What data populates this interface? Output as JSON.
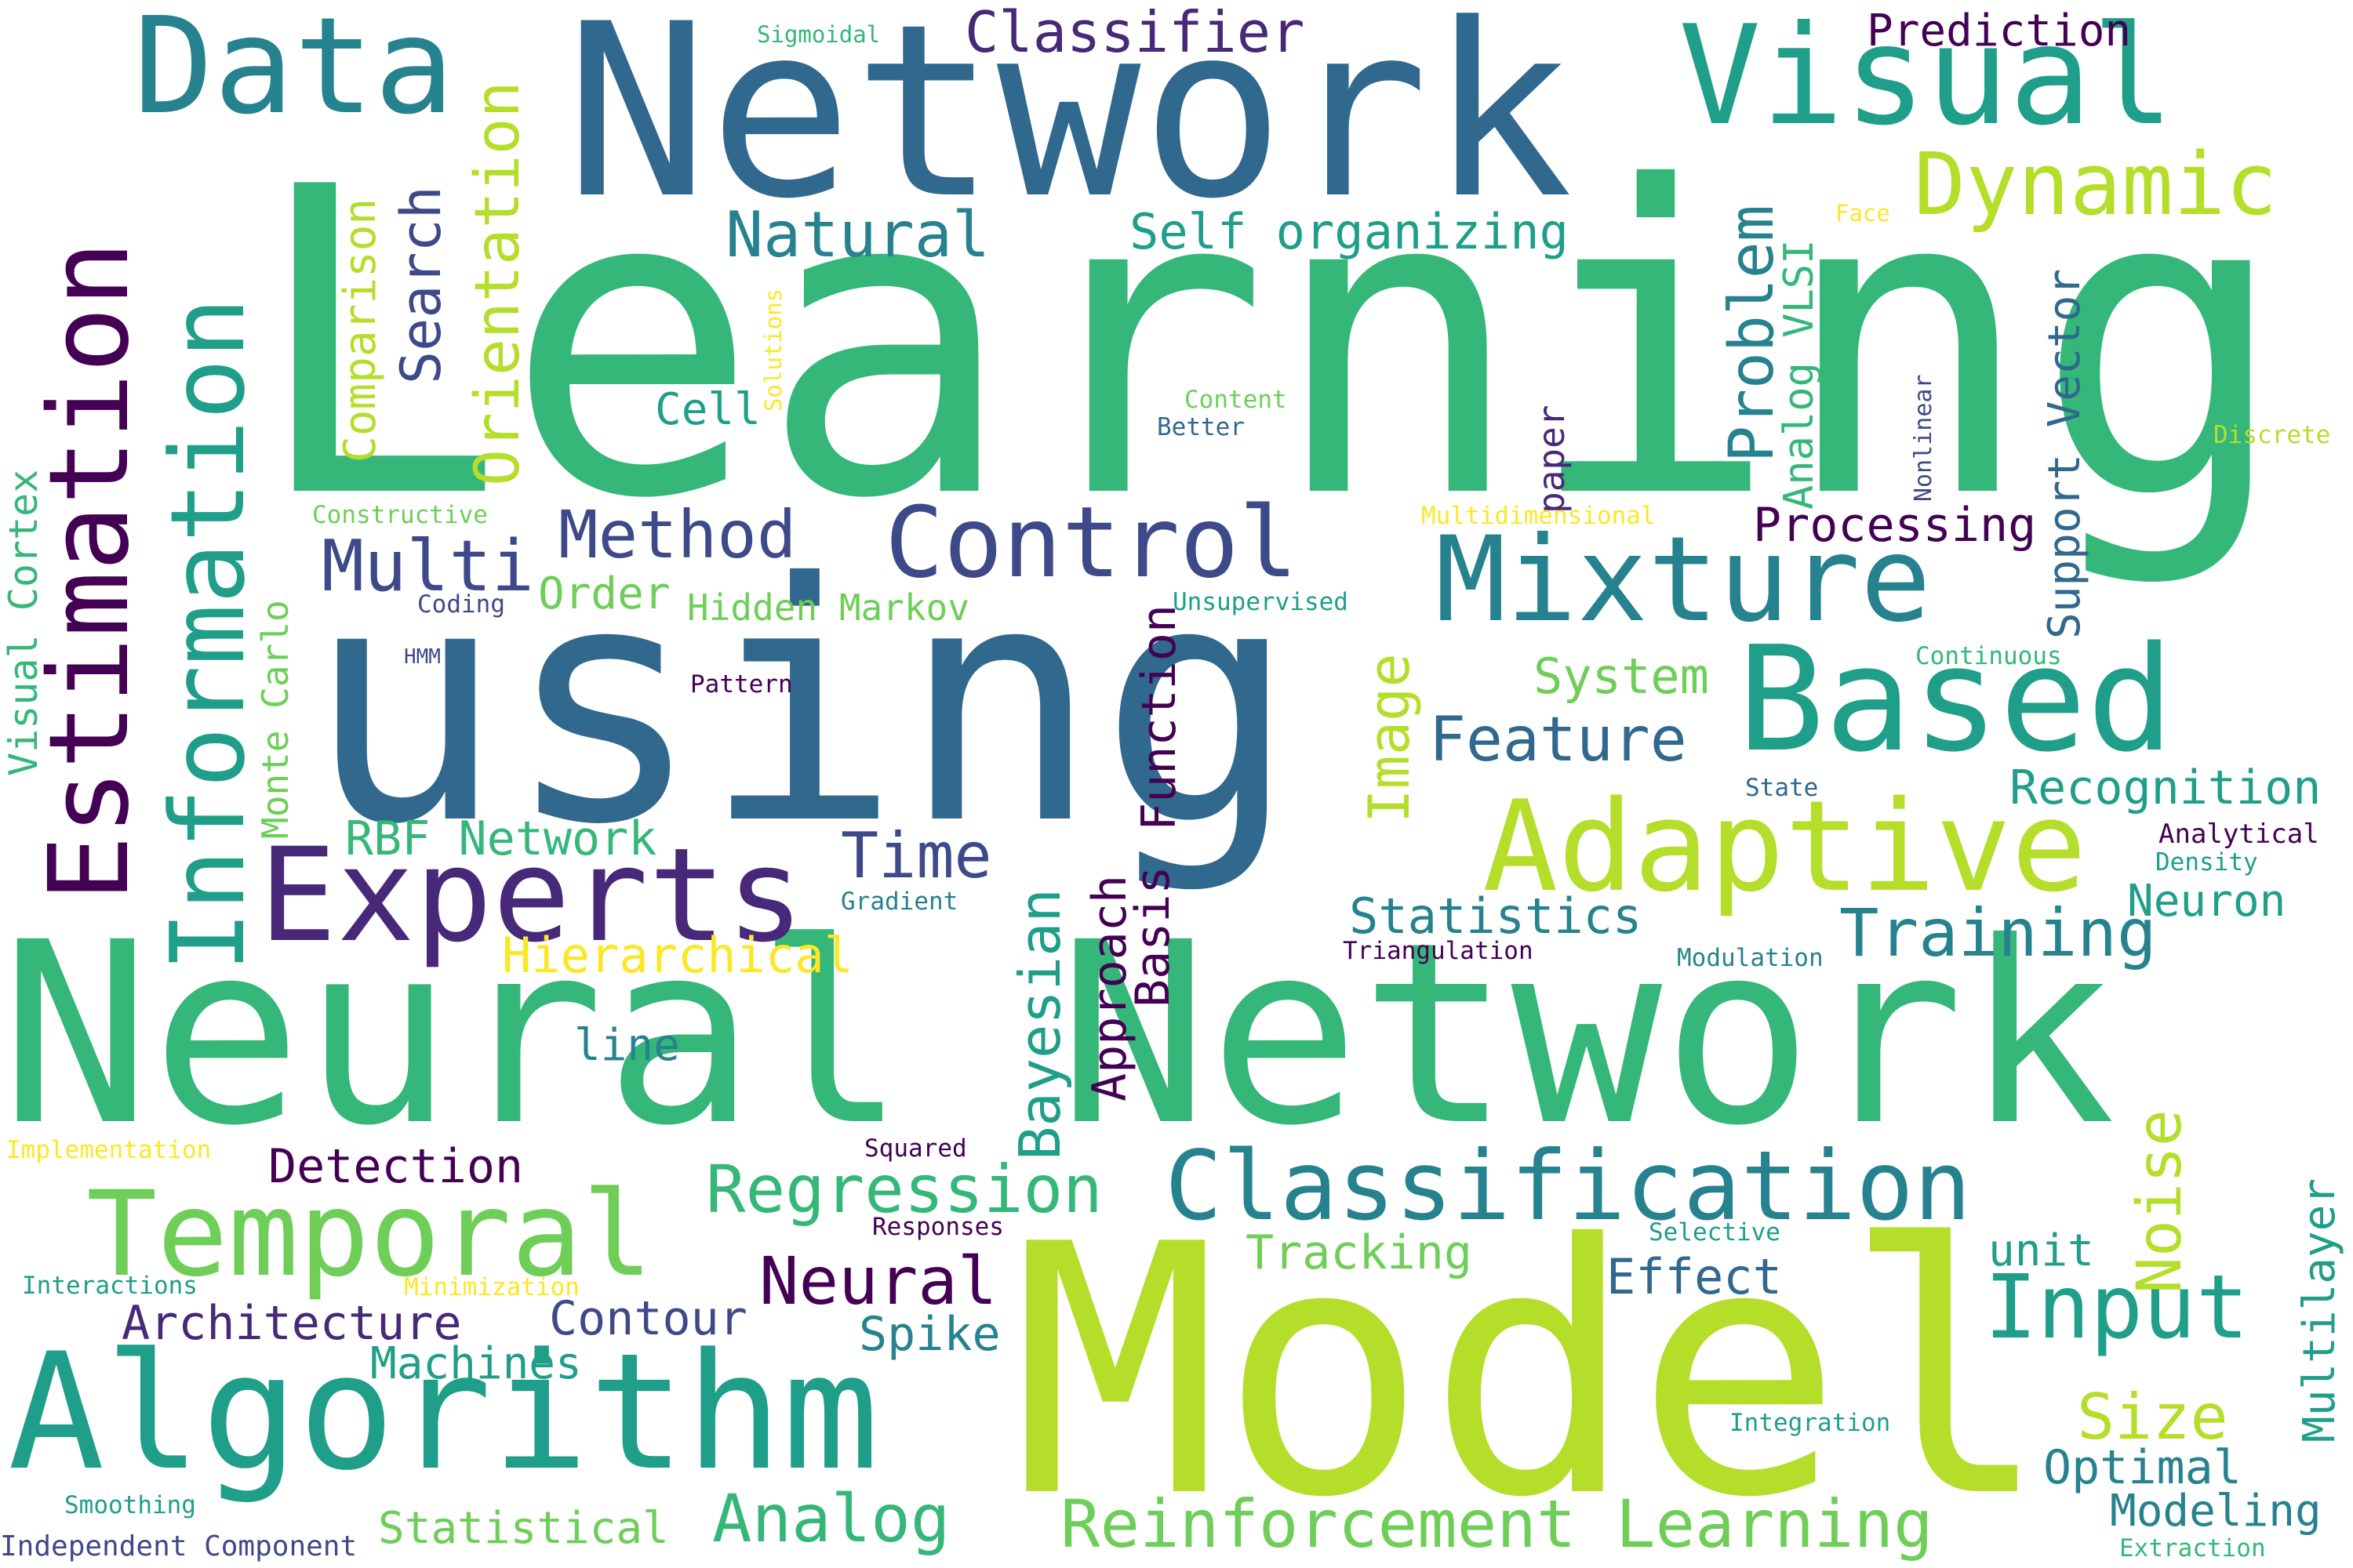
{
  "palette": {
    "dark_purple": "#440154",
    "indigo": "#482878",
    "slate_blue": "#3e4989",
    "steel_blue": "#31688e",
    "teal_blue": "#26828e",
    "teal": "#1f9e89",
    "green": "#35b779",
    "light_green": "#6ece58",
    "yellow_green": "#b5de2b",
    "yellow": "#fde725"
  },
  "words": {
    "learning": "Learning",
    "using": "using",
    "network_top": "Network",
    "neural_network": "Neural Network",
    "model": "Model",
    "algorithm": "Algorithm",
    "data": "Data",
    "visual": "Visual",
    "classifier": "Classifier",
    "prediction": "Prediction",
    "dynamic": "Dynamic",
    "sigmoidal": "Sigmoidal",
    "natural": "Natural",
    "self_organizing": "Self organizing",
    "face": "Face",
    "estimation": "Estimation",
    "information": "Information",
    "search": "Search",
    "comparison": "Comparison",
    "orientation": "Orientation",
    "solutions": "Solutions",
    "cell": "Cell",
    "problem": "Problem",
    "analog_vlsi": "Analog VLSI",
    "support_vector": "Support Vector",
    "nonlinear": "Nonlinear",
    "discrete": "Discrete",
    "content": "Content",
    "better": "Better",
    "paper": "paper",
    "visual_cortex": "Visual Cortex",
    "constructive": "Constructive",
    "multidimensional": "Multidimensional",
    "method": "Method",
    "control": "Control",
    "multi": "Multi",
    "processing": "Processing",
    "mixture": "Mixture",
    "order": "Order",
    "coding": "Coding",
    "hidden_markov": "Hidden Markov",
    "unsupervised": "Unsupervised",
    "hmm": "HMM",
    "pattern": "Pattern",
    "monte_carlo": "Monte Carlo",
    "function": "Function",
    "image": "Image",
    "system": "System",
    "based": "Based",
    "continuous": "Continuous",
    "feature": "Feature",
    "state": "State",
    "recognition": "Recognition",
    "experts": "Experts",
    "rbf_network": "RBF Network",
    "adaptive": "Adaptive",
    "analytical": "Analytical",
    "density": "Density",
    "time": "Time",
    "gradient": "Gradient",
    "bayesian": "Bayesian",
    "approach": "Approach",
    "basis": "Basis",
    "statistics": "Statistics",
    "triangulation": "Triangulation",
    "training": "Training",
    "neuron": "Neuron",
    "modulation": "Modulation",
    "hierarchical": "Hierarchical",
    "line": "line",
    "noise": "Noise",
    "implementation": "Implementation",
    "squared": "Squared",
    "detection": "Detection",
    "temporal": "Temporal",
    "regression": "Regression",
    "classification": "Classification",
    "multilayer": "Multilayer",
    "responses": "Responses",
    "selective": "Selective",
    "tracking": "Tracking",
    "unit": "unit",
    "interactions": "Interactions",
    "minimization": "Minimization",
    "neural": "Neural",
    "effect": "Effect",
    "input": "Input",
    "architecture": "Architecture",
    "contour": "Contour",
    "spike": "Spike",
    "machines": "Machines",
    "integration": "Integration",
    "size": "Size",
    "optimal": "Optimal",
    "smoothing": "Smoothing",
    "analog": "Analog",
    "modeling": "Modeling",
    "statistical": "Statistical",
    "reinforcement_learning": "Reinforcement Learning",
    "independent_component": "Independent Component",
    "extraction": "Extraction"
  }
}
